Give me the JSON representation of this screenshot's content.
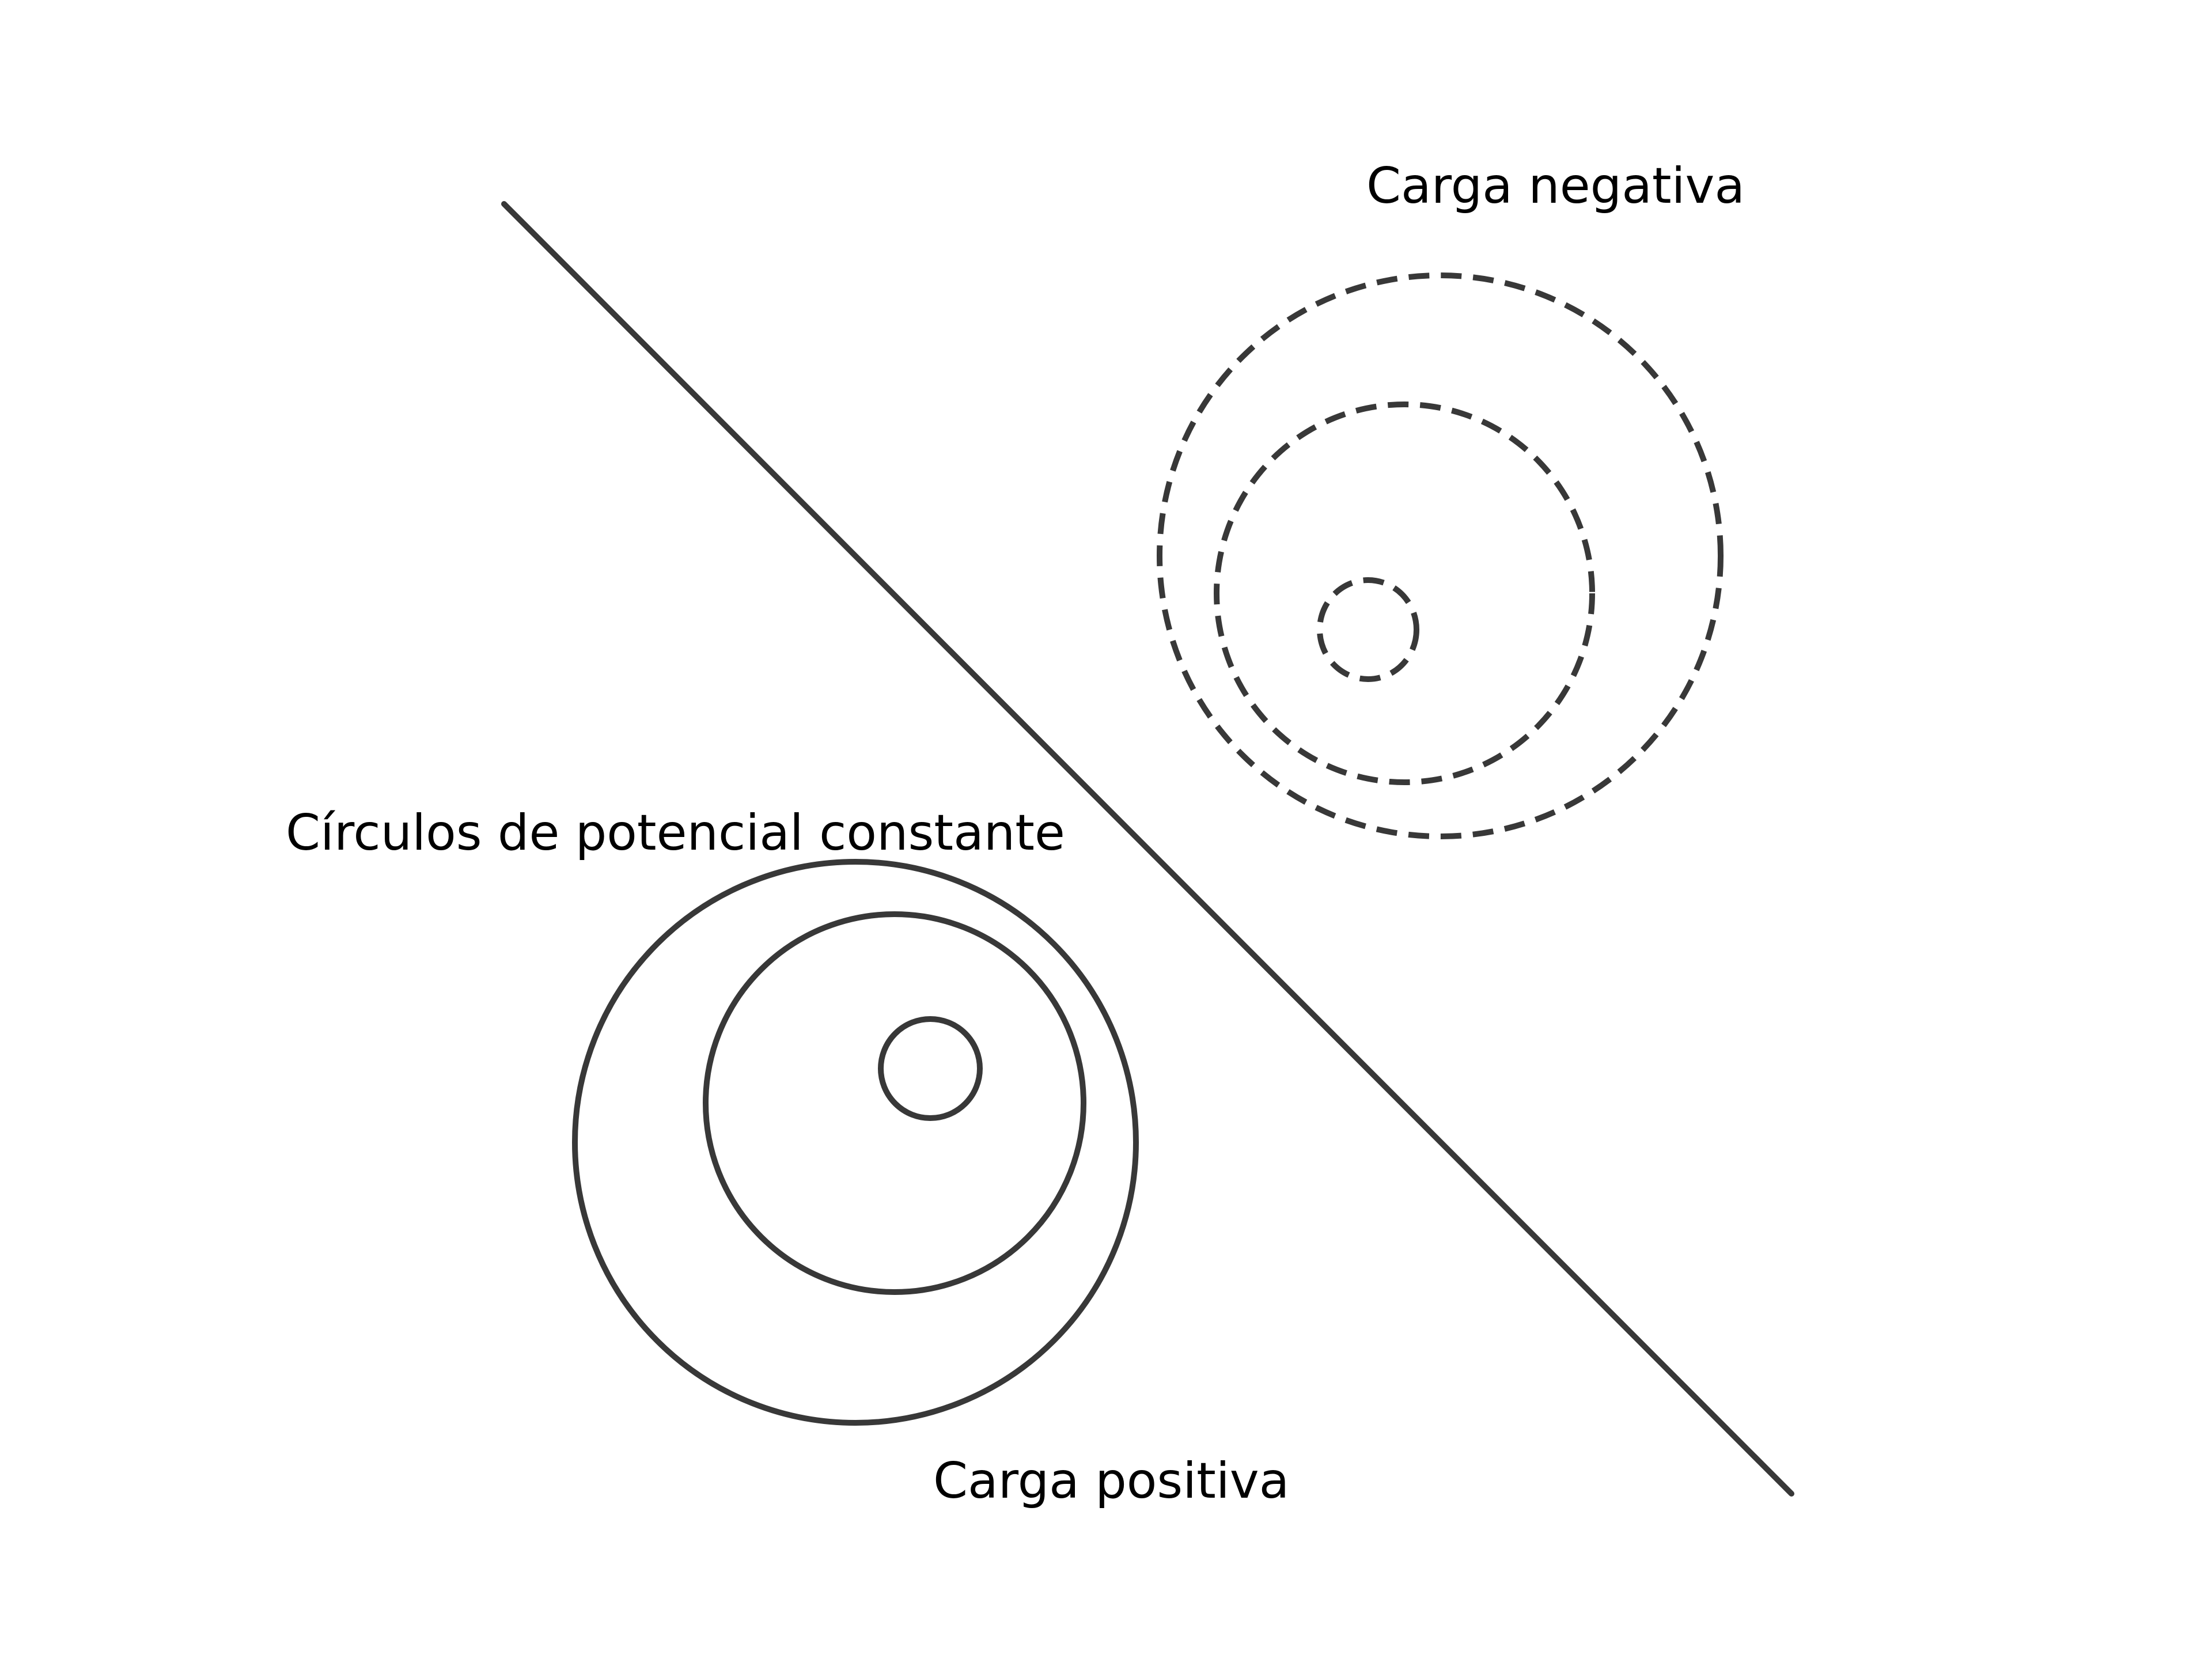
{
  "labels": {
    "negative_charge": "Carga negativa",
    "constant_potential_circles": "Círculos de potencial constante",
    "positive_charge": "Carga positiva"
  },
  "colors": {
    "stroke": "#383838",
    "text": "#000000",
    "background": "#ffffff"
  }
}
